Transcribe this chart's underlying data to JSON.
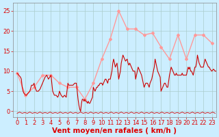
{
  "background_color": "#cceeff",
  "grid_color": "#aacccc",
  "plot_bg_color": "#cceeff",
  "ylabel_vals": [
    0,
    5,
    10,
    15,
    20,
    25
  ],
  "xlabel": "Vent moyen/en rafales ( km/h )",
  "xlabel_color": "#dd0000",
  "xlabel_fontsize": 7.5,
  "ytick_color": "#dd0000",
  "xtick_color": "#dd0000",
  "xlim": [
    -0.5,
    23.5
  ],
  "ylim": [
    -1.5,
    27
  ],
  "xticks": [
    0,
    1,
    2,
    3,
    4,
    5,
    6,
    7,
    8,
    9,
    10,
    11,
    12,
    13,
    14,
    15,
    16,
    17,
    18,
    19,
    20,
    21,
    22,
    23
  ],
  "avg_color": "#cc0000",
  "gust_color": "#ff9999",
  "tick_fontsize": 6,
  "gust_marker": "D",
  "gust_marker_size": 2.0,
  "gust_data": [
    9.5,
    4.0,
    6.0,
    9.0,
    9.0,
    7.0,
    6.0,
    6.0,
    3.0,
    7.0,
    13.0,
    18.0,
    25.0,
    20.5,
    20.5,
    19.0,
    19.5,
    16.0,
    13.0,
    19.0,
    13.0,
    19.0,
    19.0,
    17.0
  ],
  "avg_detailed": [
    [
      0,
      9.5
    ],
    [
      0.2,
      9.0
    ],
    [
      0.4,
      8.5
    ],
    [
      0.5,
      8.0
    ],
    [
      0.6,
      6.0
    ],
    [
      0.7,
      5.0
    ],
    [
      0.8,
      4.5
    ],
    [
      1.0,
      4.0
    ],
    [
      1.1,
      4.0
    ],
    [
      1.3,
      4.5
    ],
    [
      1.5,
      5.0
    ],
    [
      1.7,
      6.5
    ],
    [
      1.9,
      6.5
    ],
    [
      2.0,
      7.0
    ],
    [
      2.1,
      6.0
    ],
    [
      2.3,
      5.0
    ],
    [
      2.5,
      5.0
    ],
    [
      2.7,
      5.5
    ],
    [
      3.0,
      7.0
    ],
    [
      3.1,
      7.5
    ],
    [
      3.3,
      8.5
    ],
    [
      3.5,
      9.0
    ],
    [
      3.7,
      8.0
    ],
    [
      4.0,
      9.0
    ],
    [
      4.1,
      7.0
    ],
    [
      4.2,
      5.0
    ],
    [
      4.3,
      4.5
    ],
    [
      4.4,
      4.0
    ],
    [
      4.5,
      4.0
    ],
    [
      4.6,
      4.0
    ],
    [
      4.8,
      3.5
    ],
    [
      4.9,
      4.0
    ],
    [
      5.0,
      5.0
    ],
    [
      5.1,
      4.5
    ],
    [
      5.2,
      4.0
    ],
    [
      5.4,
      3.5
    ],
    [
      5.6,
      4.0
    ],
    [
      5.8,
      3.5
    ],
    [
      6.0,
      7.0
    ],
    [
      6.1,
      6.5
    ],
    [
      6.2,
      6.5
    ],
    [
      6.4,
      6.5
    ],
    [
      6.6,
      6.5
    ],
    [
      6.8,
      7.0
    ],
    [
      7.0,
      7.0
    ],
    [
      7.1,
      5.0
    ],
    [
      7.2,
      3.0
    ],
    [
      7.3,
      1.5
    ],
    [
      7.4,
      0.5
    ],
    [
      7.5,
      0.0
    ],
    [
      7.6,
      2.0
    ],
    [
      7.7,
      3.0
    ],
    [
      7.8,
      3.0
    ],
    [
      7.9,
      2.5
    ],
    [
      8.0,
      3.0
    ],
    [
      8.1,
      2.5
    ],
    [
      8.2,
      2.5
    ],
    [
      8.3,
      2.0
    ],
    [
      8.4,
      2.5
    ],
    [
      8.5,
      2.0
    ],
    [
      8.6,
      2.0
    ],
    [
      8.7,
      2.5
    ],
    [
      8.8,
      3.0
    ],
    [
      8.9,
      3.5
    ],
    [
      9.0,
      6.0
    ],
    [
      9.1,
      5.5
    ],
    [
      9.2,
      5.0
    ],
    [
      9.3,
      5.5
    ],
    [
      9.4,
      6.0
    ],
    [
      9.5,
      6.0
    ],
    [
      9.6,
      6.5
    ],
    [
      9.7,
      6.5
    ],
    [
      9.8,
      7.0
    ],
    [
      10.0,
      7.0
    ],
    [
      10.1,
      6.5
    ],
    [
      10.2,
      7.0
    ],
    [
      10.3,
      7.5
    ],
    [
      10.4,
      8.0
    ],
    [
      10.5,
      8.0
    ],
    [
      10.6,
      7.5
    ],
    [
      10.7,
      7.0
    ],
    [
      10.8,
      8.0
    ],
    [
      10.9,
      8.0
    ],
    [
      11.0,
      8.0
    ],
    [
      11.1,
      9.0
    ],
    [
      11.2,
      10.0
    ],
    [
      11.3,
      12.0
    ],
    [
      11.4,
      13.0
    ],
    [
      11.5,
      12.0
    ],
    [
      11.6,
      11.0
    ],
    [
      11.7,
      11.5
    ],
    [
      11.8,
      12.0
    ],
    [
      12.0,
      8.0
    ],
    [
      12.1,
      9.0
    ],
    [
      12.2,
      10.0
    ],
    [
      12.3,
      12.0
    ],
    [
      12.4,
      13.0
    ],
    [
      12.5,
      14.0
    ],
    [
      12.6,
      13.5
    ],
    [
      12.7,
      13.0
    ],
    [
      12.8,
      12.5
    ],
    [
      13.0,
      13.0
    ],
    [
      13.1,
      12.0
    ],
    [
      13.2,
      11.5
    ],
    [
      13.3,
      12.0
    ],
    [
      13.4,
      11.5
    ],
    [
      13.5,
      11.0
    ],
    [
      13.6,
      10.5
    ],
    [
      13.7,
      10.0
    ],
    [
      13.8,
      10.0
    ],
    [
      13.9,
      10.0
    ],
    [
      14.0,
      8.0
    ],
    [
      14.1,
      9.0
    ],
    [
      14.2,
      10.0
    ],
    [
      14.3,
      11.0
    ],
    [
      14.4,
      10.5
    ],
    [
      14.5,
      10.0
    ],
    [
      14.6,
      9.5
    ],
    [
      14.7,
      9.0
    ],
    [
      14.8,
      8.0
    ],
    [
      15.0,
      6.0
    ],
    [
      15.1,
      6.5
    ],
    [
      15.2,
      7.0
    ],
    [
      15.3,
      7.0
    ],
    [
      15.4,
      7.0
    ],
    [
      15.5,
      6.5
    ],
    [
      15.6,
      6.0
    ],
    [
      15.7,
      7.0
    ],
    [
      15.8,
      7.5
    ],
    [
      15.9,
      8.0
    ],
    [
      16.0,
      9.0
    ],
    [
      16.1,
      10.0
    ],
    [
      16.2,
      11.0
    ],
    [
      16.3,
      13.0
    ],
    [
      16.4,
      12.0
    ],
    [
      16.5,
      11.0
    ],
    [
      16.6,
      10.0
    ],
    [
      16.7,
      9.5
    ],
    [
      16.8,
      9.0
    ],
    [
      16.9,
      8.5
    ],
    [
      17.0,
      5.0
    ],
    [
      17.1,
      5.5
    ],
    [
      17.2,
      6.0
    ],
    [
      17.3,
      6.5
    ],
    [
      17.4,
      7.0
    ],
    [
      17.5,
      7.0
    ],
    [
      17.6,
      6.5
    ],
    [
      17.7,
      6.0
    ],
    [
      17.8,
      6.0
    ],
    [
      18.0,
      9.0
    ],
    [
      18.1,
      10.0
    ],
    [
      18.2,
      11.0
    ],
    [
      18.3,
      10.5
    ],
    [
      18.4,
      10.0
    ],
    [
      18.5,
      9.5
    ],
    [
      18.6,
      9.0
    ],
    [
      18.7,
      9.0
    ],
    [
      18.8,
      9.5
    ],
    [
      18.9,
      9.0
    ],
    [
      19.0,
      9.0
    ],
    [
      19.1,
      9.0
    ],
    [
      19.2,
      9.0
    ],
    [
      19.3,
      9.0
    ],
    [
      19.4,
      9.0
    ],
    [
      19.5,
      9.5
    ],
    [
      19.6,
      9.0
    ],
    [
      19.7,
      9.0
    ],
    [
      19.8,
      9.0
    ],
    [
      20.0,
      9.0
    ],
    [
      20.1,
      10.0
    ],
    [
      20.2,
      11.0
    ],
    [
      20.3,
      10.5
    ],
    [
      20.4,
      11.0
    ],
    [
      20.5,
      10.0
    ],
    [
      20.6,
      10.0
    ],
    [
      20.7,
      9.5
    ],
    [
      20.8,
      9.0
    ],
    [
      21.0,
      11.0
    ],
    [
      21.1,
      11.0
    ],
    [
      21.2,
      12.0
    ],
    [
      21.3,
      14.0
    ],
    [
      21.4,
      13.0
    ],
    [
      21.5,
      12.0
    ],
    [
      21.6,
      11.5
    ],
    [
      21.7,
      11.0
    ],
    [
      21.8,
      11.0
    ],
    [
      22.0,
      11.0
    ],
    [
      22.1,
      12.0
    ],
    [
      22.2,
      13.0
    ],
    [
      22.3,
      12.5
    ],
    [
      22.4,
      12.0
    ],
    [
      22.5,
      11.5
    ],
    [
      22.6,
      11.0
    ],
    [
      22.7,
      11.0
    ],
    [
      22.8,
      10.5
    ],
    [
      23.0,
      10.0
    ],
    [
      23.2,
      10.5
    ],
    [
      23.4,
      10.0
    ],
    [
      23.5,
      10.0
    ]
  ],
  "dir_line_x": [
    0,
    0.3,
    0.6,
    0.9,
    1.2,
    1.5,
    1.8,
    2.1,
    2.4,
    2.7,
    3.0,
    3.3,
    3.6,
    3.9,
    4.2,
    4.5,
    4.8,
    5.1,
    5.4,
    5.7,
    6.0,
    6.3,
    6.6,
    6.9,
    7.2,
    7.5,
    7.8,
    8.1,
    8.4,
    8.7,
    9.0,
    9.3,
    9.6,
    9.9,
    10.2,
    10.5,
    10.8,
    11.1,
    11.4,
    11.7,
    12.0,
    12.3,
    12.6,
    12.9,
    13.2,
    13.5,
    13.8,
    14.1,
    14.4,
    14.7,
    15.0,
    15.3,
    15.6,
    15.9,
    16.2,
    16.5,
    16.8,
    17.1,
    17.4,
    17.7,
    18.0,
    18.3,
    18.6,
    18.9,
    19.2,
    19.5,
    19.8,
    20.1,
    20.4,
    20.7,
    21.0,
    21.3,
    21.6,
    21.9,
    22.2,
    22.5,
    22.8,
    23.1,
    23.4
  ],
  "dir_line_y": [
    -0.5,
    -0.2,
    -0.5,
    -0.3,
    -0.5,
    -0.2,
    -0.5,
    -0.3,
    -0.5,
    -0.2,
    -0.5,
    -0.3,
    -0.5,
    -0.2,
    -0.5,
    -0.3,
    -0.5,
    -0.2,
    -0.5,
    -0.3,
    -0.5,
    -0.2,
    -0.5,
    -0.3,
    -0.5,
    -0.2,
    -0.5,
    -0.3,
    -0.5,
    -0.2,
    -0.5,
    -0.3,
    -0.5,
    -0.2,
    -0.5,
    -0.3,
    -0.5,
    -0.2,
    -0.5,
    -0.3,
    -0.5,
    -0.2,
    -0.5,
    -0.3,
    -0.5,
    -0.2,
    -0.5,
    -0.3,
    -0.5,
    -0.2,
    -0.5,
    -0.3,
    -0.5,
    -0.2,
    -0.5,
    -0.3,
    -0.5,
    -0.2,
    -0.5,
    -0.3,
    -0.5,
    -0.2,
    -0.5,
    -0.3,
    -0.5,
    -0.2,
    -0.5,
    -0.3,
    -0.5,
    -0.2,
    -0.5,
    -0.3,
    -0.5,
    -0.2,
    -0.5,
    -0.3,
    -0.5,
    -0.2,
    -0.5
  ]
}
